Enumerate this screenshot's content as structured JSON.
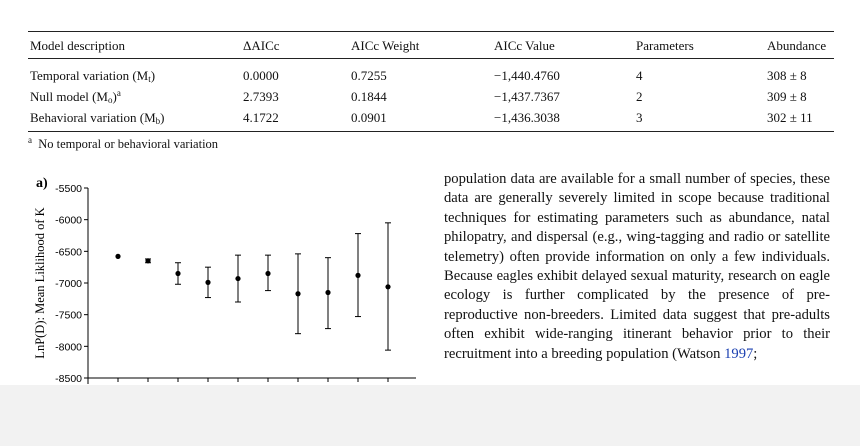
{
  "table": {
    "headers": [
      "Model description",
      "ΔAICc",
      "AICc Weight",
      "AICc Value",
      "Parameters",
      "Abundance"
    ],
    "rows": [
      {
        "model": "Temporal variation (M",
        "sub": "t",
        "sup": "",
        "daicc": "0.0000",
        "weight": "0.7255",
        "value": "−1,440.4760",
        "params": "4",
        "abundance": "308 ± 8"
      },
      {
        "model": "Null model (M",
        "sub": "o",
        "sup": "a",
        "daicc": "2.7393",
        "weight": "0.1844",
        "value": "−1,437.7367",
        "params": "2",
        "abundance": "309 ± 8"
      },
      {
        "model": "Behavioral variation (M",
        "sub": "b",
        "sup": "",
        "daicc": "4.1722",
        "weight": "0.0901",
        "value": "−1,436.3038",
        "params": "3",
        "abundance": "302 ± 11"
      }
    ],
    "footnote_mark": "a",
    "footnote": "No temporal or behavioral variation"
  },
  "chart_data": {
    "type": "scatter",
    "panel_label": "a)",
    "ylabel": "LnP(D): Mean Liklihood of K",
    "ylim": [
      -8500,
      -5500
    ],
    "yticks": [
      -5500,
      -6000,
      -6500,
      -7000,
      -7500,
      -8000,
      -8500
    ],
    "ytick_labels": [
      "-5500",
      "-6000",
      "-6500",
      "-7000",
      "-7500",
      "-8000",
      "-8500"
    ],
    "x": [
      1,
      2,
      3,
      4,
      5,
      6,
      7,
      8,
      9,
      10
    ],
    "y": [
      -6580,
      -6650,
      -6850,
      -6990,
      -6930,
      -6850,
      -7170,
      -7150,
      -6880,
      -7060
    ],
    "err_low": [
      -6580,
      -6680,
      -7020,
      -7230,
      -7300,
      -7120,
      -7800,
      -7720,
      -7530,
      -8060
    ],
    "err_high": [
      -6580,
      -6620,
      -6680,
      -6750,
      -6560,
      -6560,
      -6540,
      -6600,
      -6220,
      -6050
    ]
  },
  "body": {
    "paragraph": "population data are available for a small number of species, these data are generally severely limited in scope because traditional techniques for estimating parameters such as abundance, natal philopatry, and dispersal (e.g., wing-tagging and radio or satellite telemetry) often provide information on only a few individuals. Because eagles exhibit delayed sexual maturity, research on eagle ecology is further complicated by the presence of pre-reproductive non-breeders. Limited data suggest that pre-adults often exhibit wide-ranging itinerant behavior prior to their recruitment into a breeding population (Watson ",
    "citation_year": "1997",
    "tail": ";"
  },
  "colors": {
    "page": "#f2f2f2",
    "sheet": "#ffffff",
    "ink": "#111111",
    "link": "#1a3fb0"
  }
}
